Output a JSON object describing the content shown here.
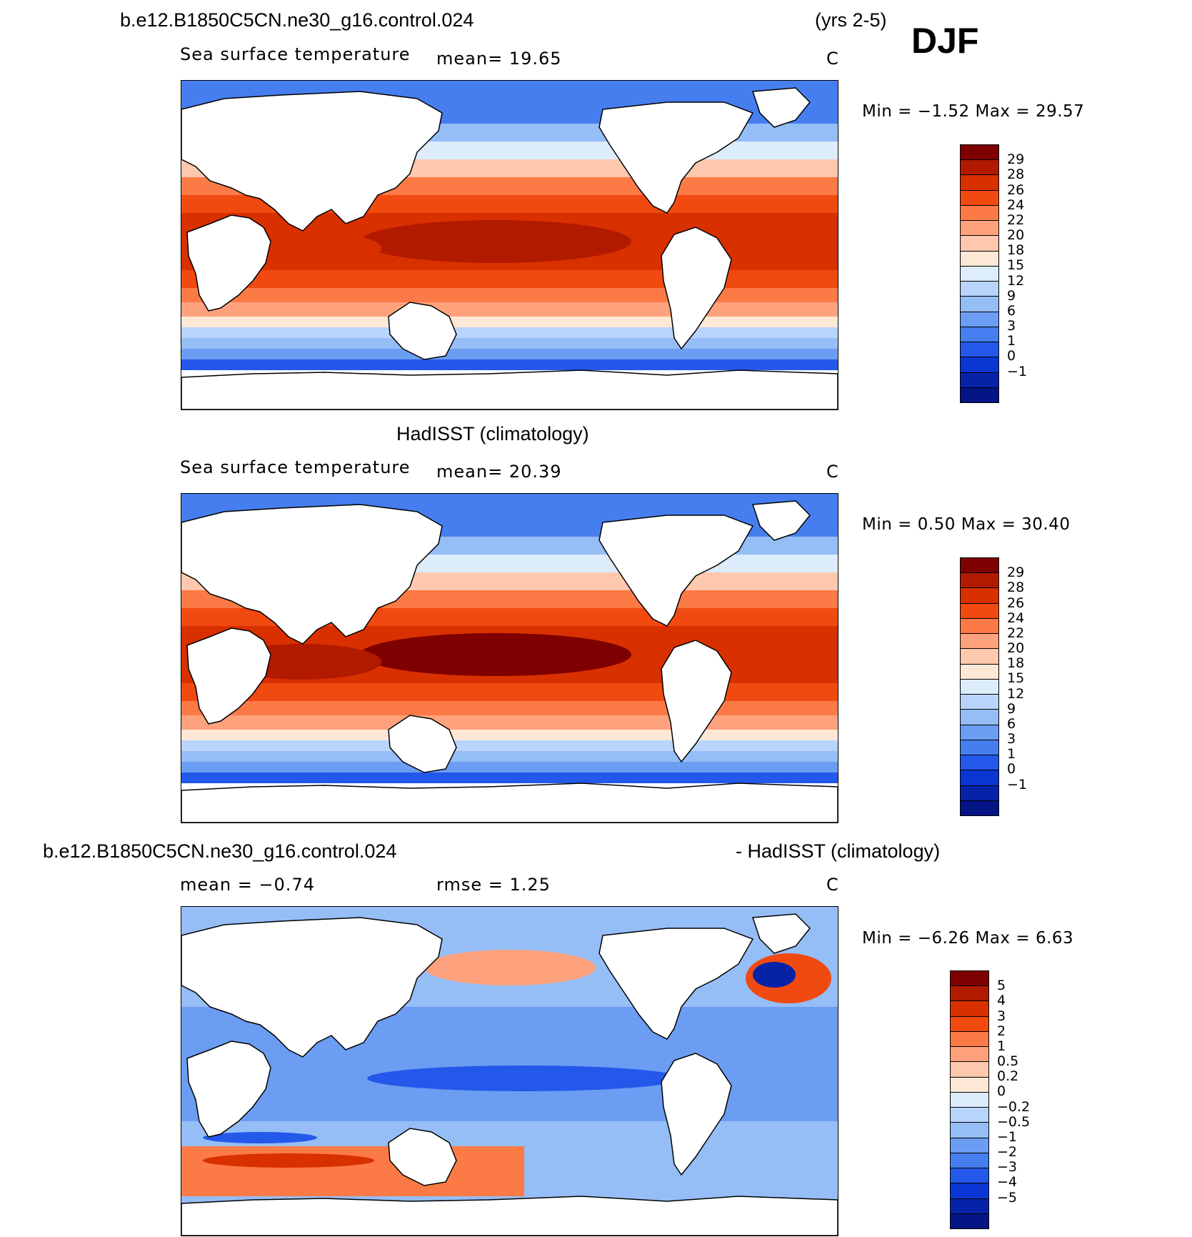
{
  "page": {
    "case_left": "b.e12.B1850C5CN.ne30_g16.control.024",
    "years": "(yrs 2-5)",
    "season": "DJF",
    "diff_case": "b.e12.B1850C5CN.ne30_g16.control.024",
    "diff_obs": "- HadISST (climatology)"
  },
  "panels": [
    {
      "title": "",
      "variable": "Sea surface temperature",
      "stat1": "mean=   19.65",
      "stat2": "",
      "units": "C",
      "minmax": "Min =   −1.52  Max =   29.57",
      "type": "sst"
    },
    {
      "title": "HadISST (climatology)",
      "variable": "Sea surface temperature",
      "stat1": "mean=   20.39",
      "stat2": "",
      "units": "C",
      "minmax": "Min =    0.50  Max =   30.40",
      "type": "sst"
    },
    {
      "title": "",
      "variable": "",
      "stat1": "mean =   −0.74",
      "stat2": "rmse =    1.25",
      "units": "C",
      "minmax": "Min =   −6.26  Max =    6.63",
      "type": "diff"
    }
  ],
  "colorbars": {
    "sst": {
      "colors": [
        "#7f0000",
        "#b21a00",
        "#d93000",
        "#f04a10",
        "#fb7a46",
        "#fda27d",
        "#fdc8ad",
        "#fde8d6",
        "#dcecfb",
        "#b8d4fa",
        "#95bdf6",
        "#6b9df2",
        "#467eef",
        "#2458ea",
        "#0a37d4",
        "#0623a8",
        "#051585"
      ],
      "labels": [
        "29",
        "28",
        "26",
        "24",
        "22",
        "20",
        "18",
        "15",
        "12",
        "9",
        "6",
        "3",
        "1",
        "0",
        "−1"
      ]
    },
    "diff": {
      "colors": [
        "#7f0000",
        "#b21a00",
        "#d93000",
        "#f04a10",
        "#fb7a46",
        "#fda27d",
        "#fdc8ad",
        "#fde8d6",
        "#dcecfb",
        "#b8d4fa",
        "#95bdf6",
        "#6b9df2",
        "#467eef",
        "#2458ea",
        "#0a37d4",
        "#0623a8",
        "#051585"
      ],
      "labels": [
        "5",
        "4",
        "3",
        "2",
        "1",
        "0.5",
        "0.2",
        "0",
        "−0.2",
        "−0.5",
        "−1",
        "−2",
        "−3",
        "−4",
        "−5"
      ]
    }
  }
}
